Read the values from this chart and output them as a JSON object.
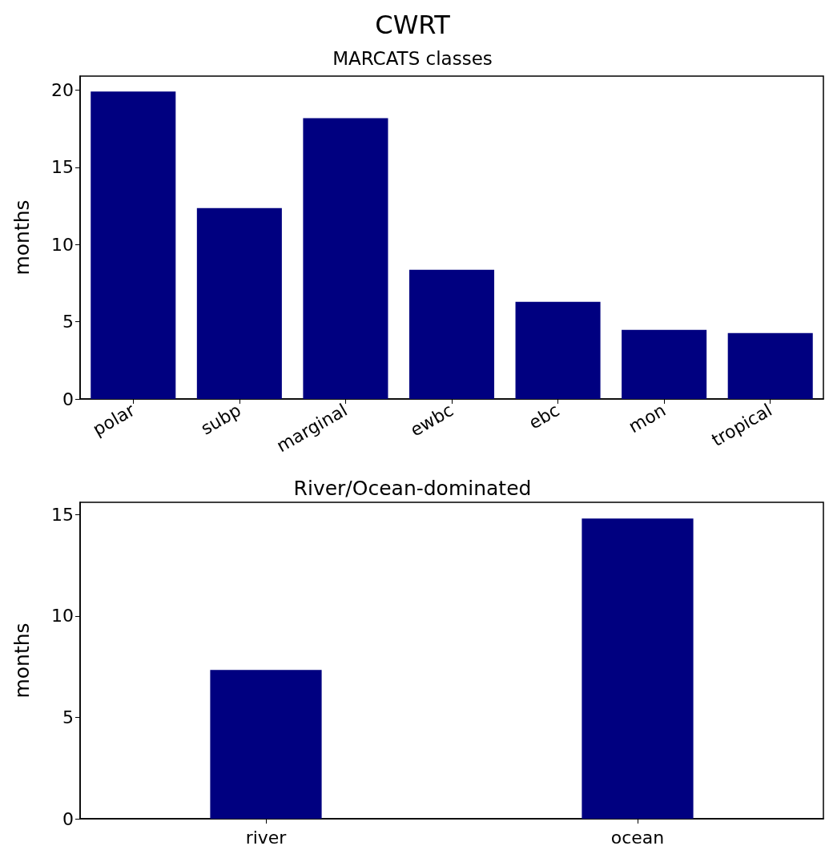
{
  "chart_data": [
    {
      "type": "bar",
      "title": "CWRT",
      "subtitle": "MARCATS classes",
      "ylabel": "months",
      "categories": [
        "polar",
        "subp",
        "marginal",
        "ewbc",
        "ebc",
        "mon",
        "tropical"
      ],
      "values": [
        19.9,
        12.36,
        18.18,
        8.36,
        6.29,
        4.47,
        4.26
      ],
      "color": "#000080",
      "ylim": [
        0,
        20.9
      ],
      "yticks": [
        0,
        5,
        10,
        15,
        20
      ],
      "grid": false
    },
    {
      "type": "bar",
      "title": "River/Ocean-dominated",
      "ylabel": "months",
      "categories": [
        "river",
        "ocean"
      ],
      "values": [
        7.34,
        14.8
      ],
      "color": "#000080",
      "ylim": [
        0,
        15.6
      ],
      "yticks": [
        0,
        5,
        10,
        15
      ],
      "grid": false
    }
  ]
}
